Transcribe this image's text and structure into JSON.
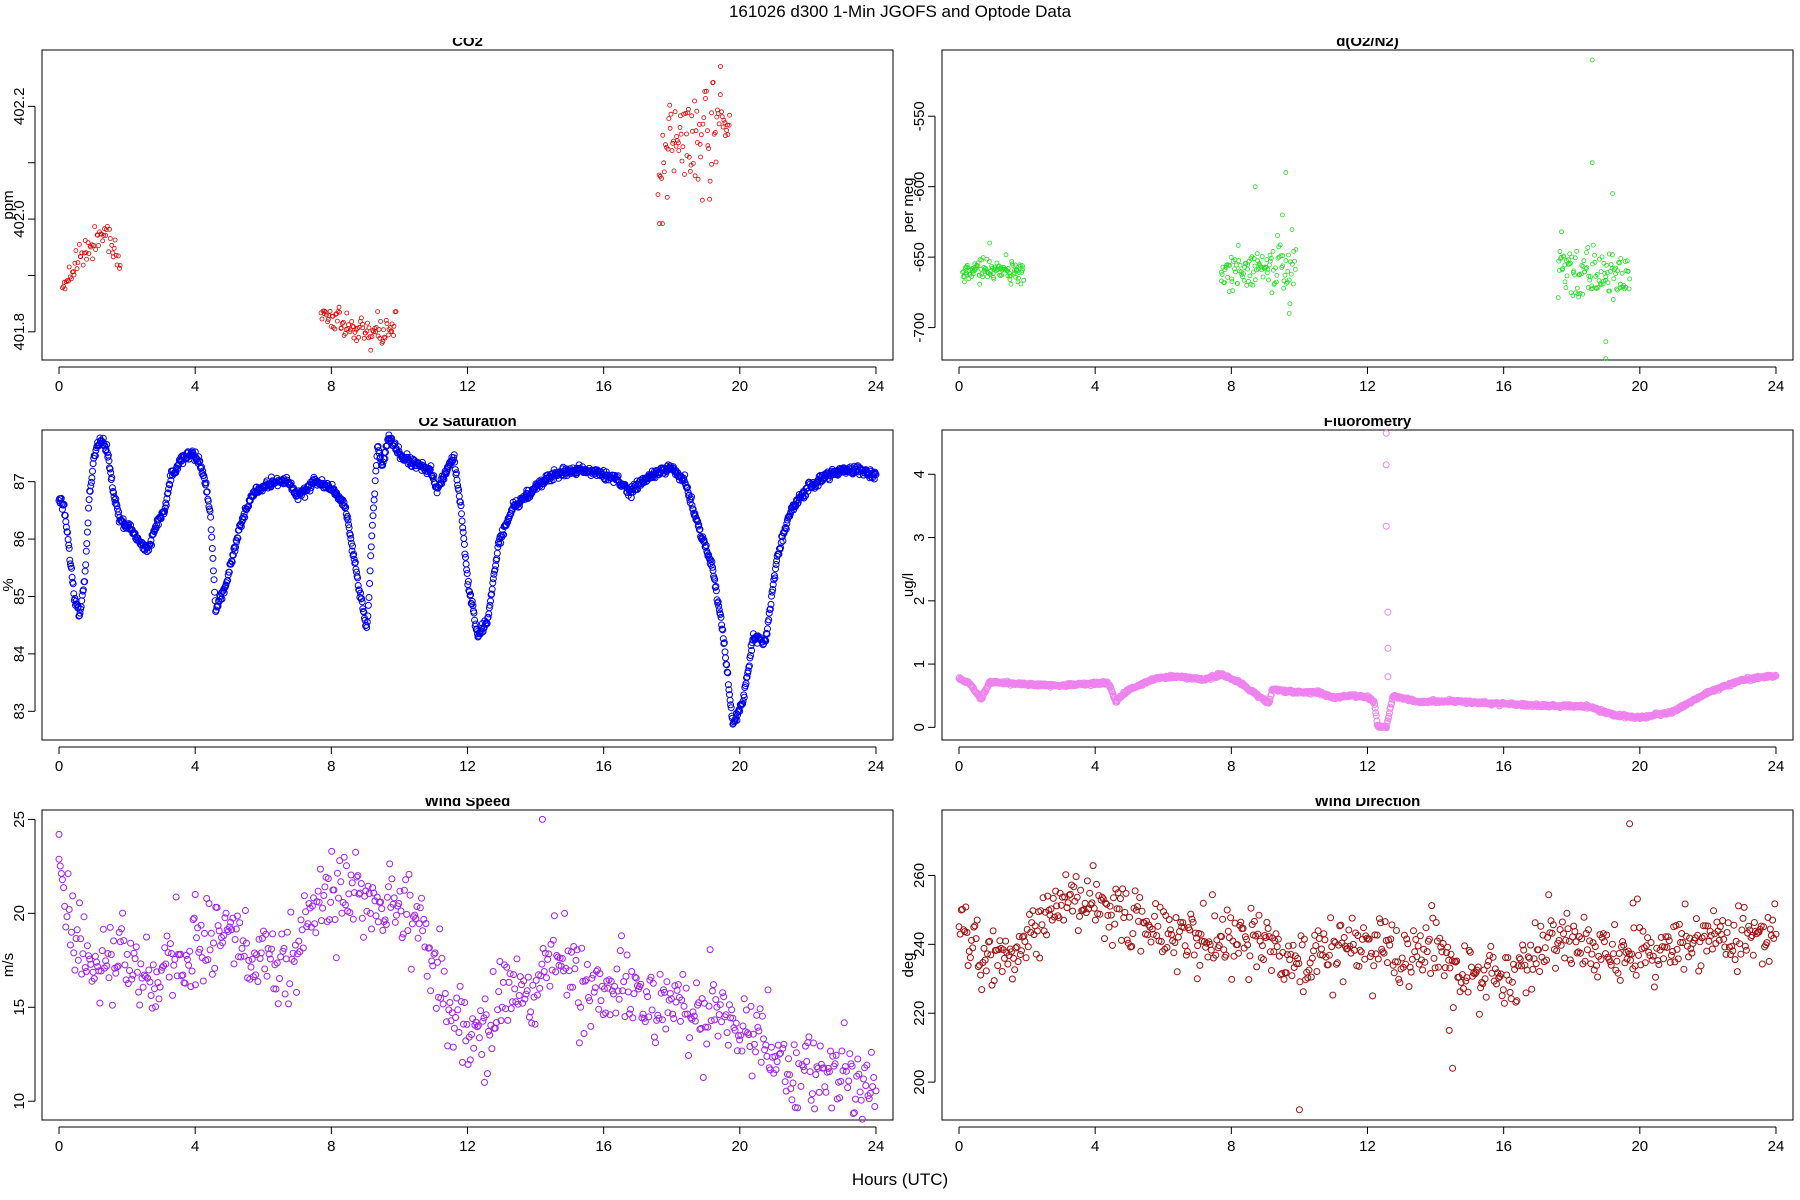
{
  "figure": {
    "title": "161026   d300   1-Min  JGOFS and Optode Data",
    "xlabel": "Hours (UTC)"
  },
  "chart_data": [
    {
      "id": "co2",
      "type": "scatter",
      "title": "CO2",
      "ylabel": "ppm",
      "color": "#e00000",
      "xlim": [
        -0.5,
        24.5
      ],
      "ylim": [
        401.75,
        402.3
      ],
      "xticks": [
        0,
        4,
        8,
        12,
        16,
        20,
        24
      ],
      "yticks": [
        401.8,
        402.0,
        402.2
      ],
      "ytick_labels": [
        "401.8",
        "402.0",
        "402.2"
      ],
      "minor_yticks": [
        401.9,
        402.1
      ],
      "marker_size": 2,
      "segments": [
        {
          "x0": 0.1,
          "x1": 1.8,
          "count": 60,
          "knots": [
            [
              0.1,
              401.88
            ],
            [
              0.6,
              401.94
            ],
            [
              1.0,
              401.96
            ],
            [
              1.4,
              401.975
            ],
            [
              1.6,
              401.94
            ],
            [
              1.8,
              401.92
            ]
          ],
          "noise": 0.012
        },
        {
          "x0": 7.7,
          "x1": 9.9,
          "count": 85,
          "knots": [
            [
              7.7,
              401.83
            ],
            [
              8.3,
              401.82
            ],
            [
              8.9,
              401.79
            ],
            [
              9.3,
              401.8
            ],
            [
              9.9,
              401.81
            ]
          ],
          "noise": 0.013
        },
        {
          "x0": 17.6,
          "x1": 19.7,
          "count": 90,
          "knots": [
            [
              17.6,
              402.04
            ],
            [
              17.9,
              402.15
            ],
            [
              18.5,
              402.13
            ],
            [
              18.9,
              402.15
            ],
            [
              19.2,
              402.12
            ],
            [
              19.7,
              402.18
            ]
          ],
          "noise": 0.045
        }
      ]
    },
    {
      "id": "o2n2",
      "type": "scatter",
      "title": "d(O2/N2)",
      "ylabel": "per meg",
      "color": "#22dd22",
      "xlim": [
        -0.5,
        24.5
      ],
      "ylim": [
        -723,
        -503
      ],
      "xticks": [
        0,
        4,
        8,
        12,
        16,
        20,
        24
      ],
      "yticks": [
        -700,
        -650,
        -600,
        -550
      ],
      "ytick_labels": [
        "-700",
        "-650",
        "-600",
        "-550"
      ],
      "marker_size": 2,
      "segments": [
        {
          "x0": 0.1,
          "x1": 1.9,
          "count": 110,
          "knots": [
            [
              0.1,
              -660
            ],
            [
              1.9,
              -660
            ]
          ],
          "noise": 4
        },
        {
          "x0": 7.7,
          "x1": 9.9,
          "count": 110,
          "knots": [
            [
              7.7,
              -660
            ],
            [
              9.9,
              -656
            ]
          ],
          "noise": 8
        },
        {
          "x0": 17.6,
          "x1": 19.7,
          "count": 110,
          "knots": [
            [
              17.6,
              -660
            ],
            [
              19.7,
              -662
            ]
          ],
          "noise": 9
        }
      ],
      "outliers": [
        [
          8.7,
          -600
        ],
        [
          9.6,
          -590
        ],
        [
          9.5,
          -620
        ],
        [
          9.7,
          -690
        ],
        [
          18.6,
          -510
        ],
        [
          18.6,
          -583
        ],
        [
          19.2,
          -605
        ],
        [
          19.0,
          -710
        ],
        [
          19.0,
          -722
        ],
        [
          17.7,
          -632
        ],
        [
          0.9,
          -640
        ]
      ]
    },
    {
      "id": "o2sat",
      "type": "line",
      "title": "O2 Saturation",
      "ylabel": "%",
      "color": "#0000ee",
      "xlim": [
        -0.5,
        24.5
      ],
      "ylim": [
        82.5,
        87.9
      ],
      "xticks": [
        0,
        4,
        8,
        12,
        16,
        20,
        24
      ],
      "yticks": [
        83,
        84,
        85,
        86,
        87
      ],
      "ytick_labels": [
        "83",
        "84",
        "85",
        "86",
        "87"
      ],
      "marker_size": 3,
      "count": 1440,
      "noise": 0.04,
      "knots": [
        [
          0,
          86.7
        ],
        [
          0.15,
          86.6
        ],
        [
          0.3,
          85.8
        ],
        [
          0.45,
          85.0
        ],
        [
          0.6,
          84.65
        ],
        [
          0.75,
          85.3
        ],
        [
          0.9,
          86.8
        ],
        [
          1.05,
          87.5
        ],
        [
          1.2,
          87.7
        ],
        [
          1.4,
          87.6
        ],
        [
          1.6,
          86.8
        ],
        [
          1.8,
          86.3
        ],
        [
          2.1,
          86.2
        ],
        [
          2.4,
          85.9
        ],
        [
          2.6,
          85.8
        ],
        [
          2.9,
          86.3
        ],
        [
          3.1,
          86.5
        ],
        [
          3.3,
          87.1
        ],
        [
          3.6,
          87.4
        ],
        [
          3.9,
          87.5
        ],
        [
          4.1,
          87.4
        ],
        [
          4.3,
          87.0
        ],
        [
          4.45,
          86.4
        ],
        [
          4.6,
          84.75
        ],
        [
          4.9,
          85.2
        ],
        [
          5.3,
          86.2
        ],
        [
          5.7,
          86.8
        ],
        [
          6.3,
          87.0
        ],
        [
          6.7,
          87.0
        ],
        [
          7.0,
          86.75
        ],
        [
          7.5,
          87.0
        ],
        [
          8.0,
          86.9
        ],
        [
          8.4,
          86.6
        ],
        [
          8.8,
          85.2
        ],
        [
          9.05,
          84.4
        ],
        [
          9.2,
          86.2
        ],
        [
          9.35,
          87.55
        ],
        [
          9.5,
          87.3
        ],
        [
          9.7,
          87.75
        ],
        [
          10.1,
          87.4
        ],
        [
          10.5,
          87.3
        ],
        [
          10.9,
          87.2
        ],
        [
          11.1,
          86.85
        ],
        [
          11.4,
          87.2
        ],
        [
          11.6,
          87.45
        ],
        [
          11.8,
          86.6
        ],
        [
          12.0,
          85.3
        ],
        [
          12.3,
          84.3
        ],
        [
          12.6,
          84.6
        ],
        [
          12.9,
          85.9
        ],
        [
          13.3,
          86.5
        ],
        [
          14.0,
          86.9
        ],
        [
          14.6,
          87.15
        ],
        [
          15.2,
          87.2
        ],
        [
          15.8,
          87.15
        ],
        [
          16.4,
          87.05
        ],
        [
          16.8,
          86.8
        ],
        [
          17.0,
          86.95
        ],
        [
          17.5,
          87.15
        ],
        [
          18.0,
          87.25
        ],
        [
          18.4,
          87.0
        ],
        [
          18.8,
          86.2
        ],
        [
          19.2,
          85.5
        ],
        [
          19.5,
          84.4
        ],
        [
          19.8,
          82.75
        ],
        [
          20.1,
          83.2
        ],
        [
          20.4,
          84.3
        ],
        [
          20.75,
          84.2
        ],
        [
          21.1,
          85.7
        ],
        [
          21.5,
          86.5
        ],
        [
          22.0,
          86.9
        ],
        [
          22.5,
          87.1
        ],
        [
          23.0,
          87.2
        ],
        [
          23.5,
          87.2
        ],
        [
          24.0,
          87.1
        ]
      ]
    },
    {
      "id": "fluoro",
      "type": "line",
      "title": "Fluorometry",
      "ylabel": "ug/l",
      "color": "#ee82ee",
      "xlim": [
        -0.5,
        24.5
      ],
      "ylim": [
        -0.2,
        4.7
      ],
      "xticks": [
        0,
        4,
        8,
        12,
        16,
        20,
        24
      ],
      "yticks": [
        0,
        1,
        2,
        3,
        4
      ],
      "ytick_labels": [
        "0",
        "1",
        "2",
        "3",
        "4"
      ],
      "marker_size": 3,
      "count": 1440,
      "noise": 0.012,
      "knots": [
        [
          0,
          0.77
        ],
        [
          0.3,
          0.7
        ],
        [
          0.65,
          0.45
        ],
        [
          0.9,
          0.72
        ],
        [
          2.0,
          0.68
        ],
        [
          3.0,
          0.66
        ],
        [
          4.0,
          0.7
        ],
        [
          4.4,
          0.7
        ],
        [
          4.6,
          0.42
        ],
        [
          5.0,
          0.6
        ],
        [
          5.8,
          0.78
        ],
        [
          6.5,
          0.8
        ],
        [
          7.2,
          0.75
        ],
        [
          7.7,
          0.84
        ],
        [
          8.2,
          0.72
        ],
        [
          8.8,
          0.5
        ],
        [
          9.1,
          0.38
        ],
        [
          9.2,
          0.6
        ],
        [
          10.0,
          0.55
        ],
        [
          10.6,
          0.55
        ],
        [
          11.0,
          0.47
        ],
        [
          11.5,
          0.5
        ],
        [
          12.0,
          0.48
        ],
        [
          12.2,
          0.4
        ],
        [
          12.3,
          0.02
        ],
        [
          12.55,
          0.0
        ],
        [
          12.75,
          0.5
        ],
        [
          13.5,
          0.4
        ],
        [
          14.5,
          0.42
        ],
        [
          15.5,
          0.38
        ],
        [
          16.5,
          0.36
        ],
        [
          17.5,
          0.34
        ],
        [
          18.5,
          0.33
        ],
        [
          19.2,
          0.2
        ],
        [
          20.0,
          0.15
        ],
        [
          21.0,
          0.25
        ],
        [
          22.0,
          0.55
        ],
        [
          23.0,
          0.75
        ],
        [
          24.0,
          0.82
        ]
      ],
      "outliers": [
        [
          12.55,
          4.65
        ],
        [
          12.55,
          4.15
        ],
        [
          12.55,
          3.18
        ],
        [
          12.6,
          1.82
        ],
        [
          12.6,
          1.25
        ],
        [
          12.6,
          0.8
        ]
      ]
    },
    {
      "id": "wspd",
      "type": "scatter",
      "title": "Wind Speed",
      "ylabel": "m/s",
      "color": "#a020f0",
      "xlim": [
        -0.5,
        24.5
      ],
      "ylim": [
        9.0,
        25.5
      ],
      "xticks": [
        0,
        4,
        8,
        12,
        16,
        20,
        24
      ],
      "yticks": [
        10,
        15,
        20,
        25
      ],
      "ytick_labels": [
        "10",
        "15",
        "20",
        "25"
      ],
      "marker_size": 3,
      "count": 720,
      "noise": 1.1,
      "knots": [
        [
          0,
          22.5
        ],
        [
          0.2,
          20.5
        ],
        [
          0.5,
          18.5
        ],
        [
          1.0,
          17.0
        ],
        [
          1.5,
          17.2
        ],
        [
          2.0,
          17.8
        ],
        [
          2.5,
          16.5
        ],
        [
          3.0,
          17.0
        ],
        [
          3.5,
          17.8
        ],
        [
          4.0,
          18.2
        ],
        [
          4.5,
          19.0
        ],
        [
          5.0,
          18.5
        ],
        [
          5.5,
          18.3
        ],
        [
          6.0,
          18.0
        ],
        [
          6.5,
          17.5
        ],
        [
          7.0,
          17.0
        ],
        [
          7.2,
          19.5
        ],
        [
          8.0,
          20.8
        ],
        [
          8.5,
          21.2
        ],
        [
          9.0,
          20.8
        ],
        [
          9.5,
          20.0
        ],
        [
          10.0,
          20.5
        ],
        [
          10.5,
          19.8
        ],
        [
          11.0,
          17.5
        ],
        [
          11.5,
          14.5
        ],
        [
          12.0,
          13.5
        ],
        [
          12.5,
          13.0
        ],
        [
          13.0,
          15.5
        ],
        [
          13.5,
          16.0
        ],
        [
          14.0,
          15.5
        ],
        [
          14.5,
          18.0
        ],
        [
          15.0,
          17.5
        ],
        [
          15.5,
          16.0
        ],
        [
          16.0,
          15.5
        ],
        [
          16.5,
          16.5
        ],
        [
          17.0,
          15.5
        ],
        [
          17.5,
          15.0
        ],
        [
          18.0,
          15.0
        ],
        [
          18.5,
          14.5
        ],
        [
          19.0,
          14.3
        ],
        [
          19.5,
          15.0
        ],
        [
          20.0,
          13.5
        ],
        [
          20.5,
          13.8
        ],
        [
          21.0,
          13.5
        ],
        [
          21.5,
          11.0
        ],
        [
          22.0,
          11.8
        ],
        [
          22.5,
          11.5
        ],
        [
          23.0,
          12.0
        ],
        [
          23.5,
          11.0
        ],
        [
          24.0,
          11.0
        ]
      ],
      "outliers": [
        [
          14.2,
          25.0
        ],
        [
          0.0,
          24.2
        ],
        [
          4.0,
          21.0
        ],
        [
          12.5,
          11.0
        ]
      ]
    },
    {
      "id": "wdir",
      "type": "scatter",
      "title": "Wind Direction",
      "ylabel": "deg",
      "color": "#a01010",
      "xlim": [
        -0.5,
        24.5
      ],
      "ylim": [
        189,
        279
      ],
      "xticks": [
        0,
        4,
        8,
        12,
        16,
        20,
        24
      ],
      "yticks": [
        200,
        220,
        240,
        260
      ],
      "ytick_labels": [
        "200",
        "220",
        "240",
        "260"
      ],
      "marker_size": 3,
      "count": 720,
      "noise": 4.5,
      "knots": [
        [
          0,
          246
        ],
        [
          0.3,
          244
        ],
        [
          0.7,
          235
        ],
        [
          1.2,
          236
        ],
        [
          1.8,
          240
        ],
        [
          2.5,
          248
        ],
        [
          3.0,
          251
        ],
        [
          4.0,
          250
        ],
        [
          5.0,
          249
        ],
        [
          6.0,
          245
        ],
        [
          7.0,
          242
        ],
        [
          8.0,
          243
        ],
        [
          9.0,
          241
        ],
        [
          10.0,
          234
        ],
        [
          11.0,
          238
        ],
        [
          12.0,
          240
        ],
        [
          13.0,
          237
        ],
        [
          14.0,
          238
        ],
        [
          14.5,
          232
        ],
        [
          15.0,
          232
        ],
        [
          16.0,
          228
        ],
        [
          16.5,
          233
        ],
        [
          17.0,
          238
        ],
        [
          18.0,
          242
        ],
        [
          19.0,
          236
        ],
        [
          20.0,
          238
        ],
        [
          21.0,
          239
        ],
        [
          22.0,
          242
        ],
        [
          23.0,
          243
        ],
        [
          24.0,
          244
        ]
      ],
      "outliers": [
        [
          19.7,
          275
        ],
        [
          10.0,
          192
        ],
        [
          14.5,
          204
        ],
        [
          7.0,
          230
        ],
        [
          19.8,
          252
        ],
        [
          14.4,
          215
        ]
      ]
    }
  ]
}
